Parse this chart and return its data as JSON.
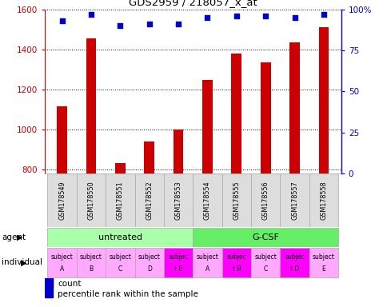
{
  "title": "GDS2959 / 218057_x_at",
  "samples": [
    "GSM178549",
    "GSM178550",
    "GSM178551",
    "GSM178552",
    "GSM178553",
    "GSM178554",
    "GSM178555",
    "GSM178556",
    "GSM178557",
    "GSM178558"
  ],
  "counts": [
    1115,
    1455,
    830,
    940,
    1000,
    1245,
    1380,
    1335,
    1435,
    1510
  ],
  "percentile_ranks": [
    93,
    97,
    90,
    91,
    91,
    95,
    96,
    96,
    95,
    97
  ],
  "ylim_left": [
    780,
    1600
  ],
  "ylim_right": [
    0,
    100
  ],
  "yticks_left": [
    800,
    1000,
    1200,
    1400,
    1600
  ],
  "yticks_right": [
    0,
    25,
    50,
    75,
    100
  ],
  "bar_color": "#cc0000",
  "dot_color": "#0000cc",
  "agent_untreated_color": "#aaffaa",
  "agent_gcsf_color": "#66ee66",
  "individual_light_color": "#ffaaff",
  "individual_bright_color": "#ff00ff",
  "individual_highlight": [
    4,
    6,
    8
  ],
  "agent_labels": [
    "untreated",
    "G-CSF"
  ],
  "individual_labels": [
    [
      "subject",
      "A"
    ],
    [
      "subject",
      "B"
    ],
    [
      "subject",
      "C"
    ],
    [
      "subject",
      "D"
    ],
    [
      "subjec",
      "t E"
    ],
    [
      "subject",
      "A"
    ],
    [
      "subjec",
      "t B"
    ],
    [
      "subject",
      "C"
    ],
    [
      "subjec",
      "t D"
    ],
    [
      "subject",
      "E"
    ]
  ],
  "axis_left_color": "#cc0000",
  "axis_right_color": "#0000cc",
  "background_color": "#ffffff",
  "label_agent": "agent",
  "label_individual": "individual",
  "sample_bg_color": "#dddddd",
  "sample_border_color": "#aaaaaa"
}
